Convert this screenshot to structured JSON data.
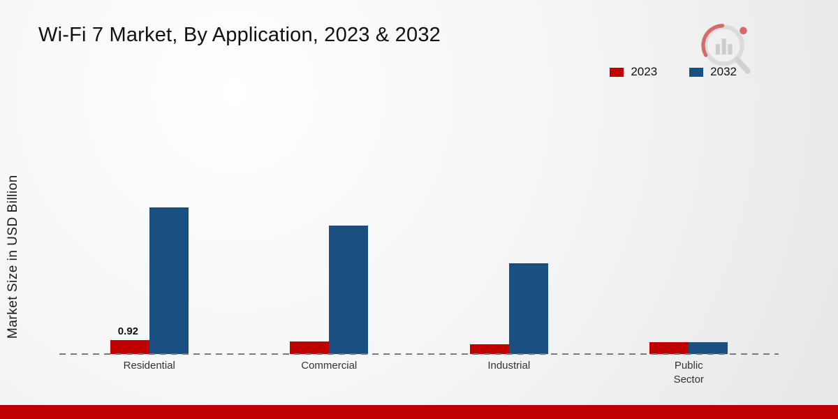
{
  "page": {
    "title": "Wi-Fi 7 Market, By Application, 2023 & 2032",
    "ylabel": "Market Size in USD Billion"
  },
  "branding": {
    "logo_icon": "magnifier-bar-chart-logo-icon",
    "footer_strip_color": "#c00000"
  },
  "chart_data": {
    "type": "bar",
    "title": "Wi-Fi 7 Market, By Application, 2023 & 2032",
    "xlabel": "",
    "ylabel": "Market Size in USD Billion",
    "categories": [
      "Residential",
      "Commercial",
      "Industrial",
      "Public\nSector"
    ],
    "series": [
      {
        "name": "2023",
        "color": "#c00000",
        "values": [
          0.92,
          0.85,
          0.65,
          0.8
        ]
      },
      {
        "name": "2032",
        "color": "#1a4f82",
        "values": [
          9.7,
          8.5,
          6.0,
          0.8
        ]
      }
    ],
    "annotations": [
      {
        "series": "2023",
        "category": "Residential",
        "text": "0.92"
      }
    ],
    "ylim": [
      0,
      10
    ],
    "grid": false,
    "baseline_style": "dashed",
    "legend_position": "top-right",
    "y_axis_ticks_visible": false
  }
}
